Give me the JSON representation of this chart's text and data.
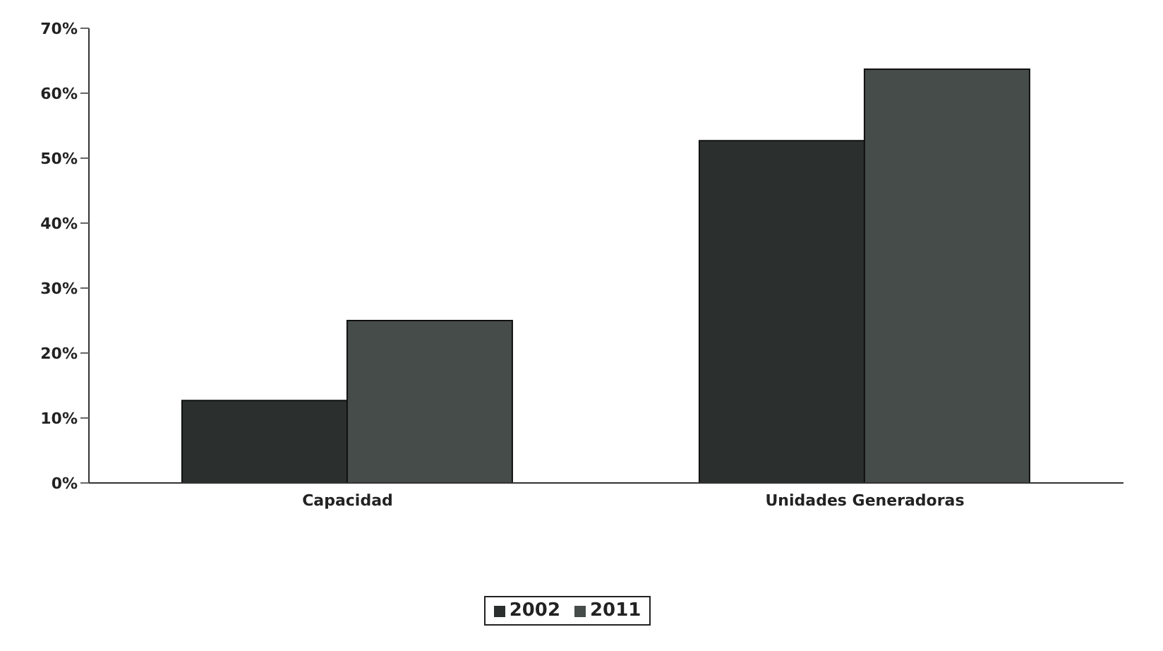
{
  "chart_data": {
    "type": "bar",
    "categories": [
      "Capacidad",
      "Unidades Generadoras"
    ],
    "series": [
      {
        "name": "2002",
        "color": "#2b302f",
        "values": [
          12.7,
          52.7
        ]
      },
      {
        "name": "2011",
        "color": "#454c4a",
        "values": [
          25,
          63.7
        ]
      }
    ],
    "ylim": [
      0,
      70
    ],
    "yticks": [
      {
        "value": 0,
        "label": "0%"
      },
      {
        "value": 10,
        "label": "10%"
      },
      {
        "value": 20,
        "label": "20%"
      },
      {
        "value": 30,
        "label": "30%"
      },
      {
        "value": 40,
        "label": "40%"
      },
      {
        "value": 50,
        "label": "50%"
      },
      {
        "value": 60,
        "label": "60%"
      },
      {
        "value": 70,
        "label": "70%"
      }
    ],
    "grid": false,
    "legend": "bottom"
  }
}
